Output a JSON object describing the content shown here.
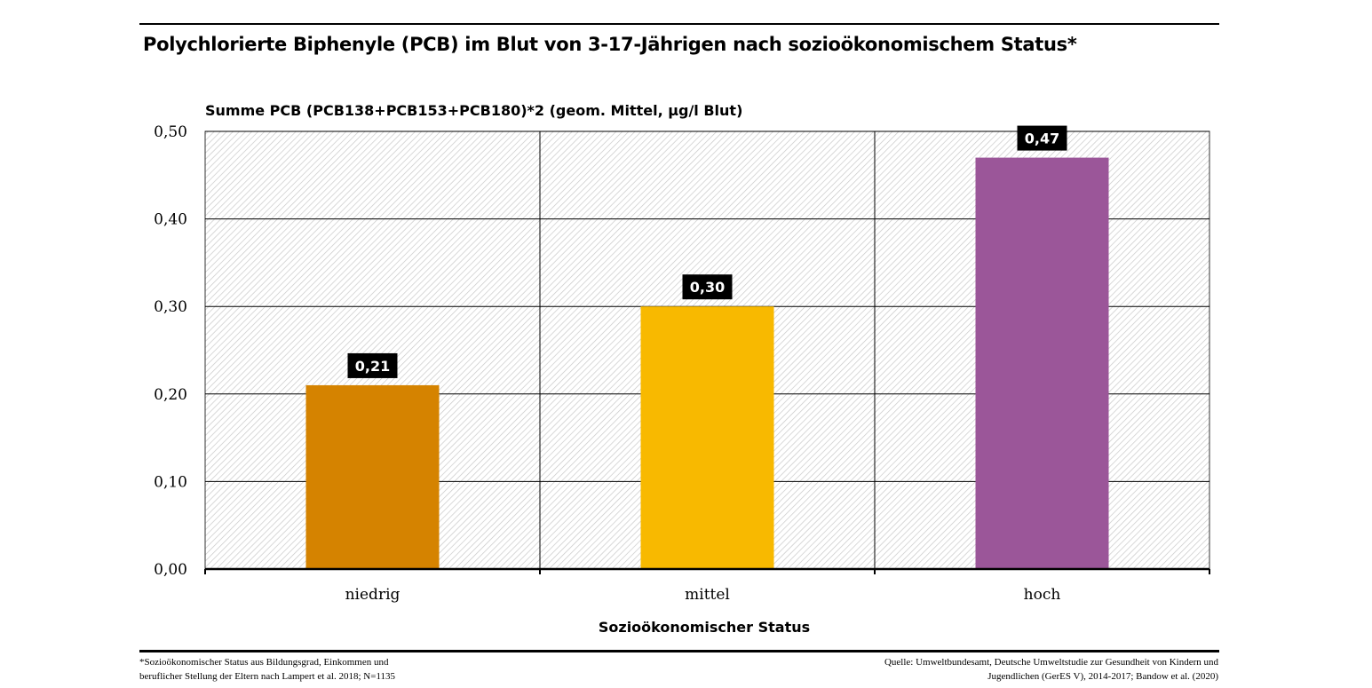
{
  "title": "Polychlorierte Biphenyle (PCB) im Blut von 3-17-Jährigen nach sozioökonomischem Status*",
  "footnote": {
    "line1": "*Sozioökonomischer Status aus Bildungsgrad, Einkommen und",
    "line2": "beruflicher Stellung der Eltern nach Lampert et al. 2018; N=1135"
  },
  "source": {
    "line1": "Quelle: Umweltbundesamt, Deutsche Umweltstudie zur Gesundheit von Kindern und",
    "line2": "Jugendlichen (GerES V), 2014-2017; Bandow et al. (2020)"
  },
  "chart_data": {
    "type": "bar",
    "ylabel": "Summe PCB (PCB138+PCB153+PCB180)*2 (geom. Mittel, µg/l Blut)",
    "xlabel": "Sozioökonomischer Status",
    "categories": [
      "niedrig",
      "mittel",
      "hoch"
    ],
    "values": [
      0.21,
      0.3,
      0.47
    ],
    "data_labels": [
      "0,21",
      "0,30",
      "0,47"
    ],
    "colors": [
      "#d58300",
      "#f8b900",
      "#9b5699"
    ],
    "ylim": [
      0,
      0.5
    ],
    "yticks": [
      0.0,
      0.1,
      0.2,
      0.3,
      0.4,
      0.5
    ],
    "ytick_labels": [
      "0,00",
      "0,10",
      "0,20",
      "0,30",
      "0,40",
      "0,50"
    ],
    "grid": true,
    "legend": "none"
  }
}
